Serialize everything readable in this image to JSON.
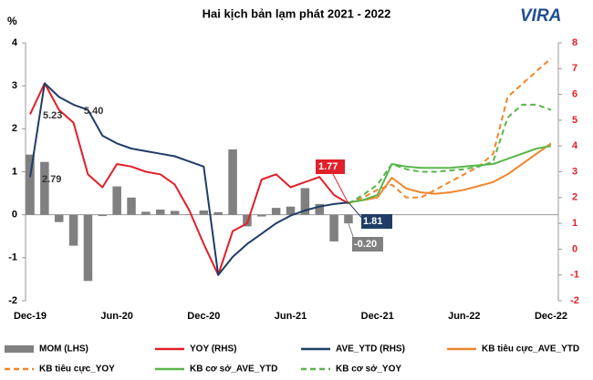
{
  "chart_data": {
    "type": "combo",
    "title": "Hai kịch bản lạm phát 2021 - 2022",
    "logo": "VIRA",
    "ylabel": "%",
    "categories": [
      "Dec-19",
      null,
      null,
      null,
      null,
      null,
      "Jun-20",
      null,
      null,
      null,
      null,
      null,
      "Dec-20",
      null,
      null,
      null,
      null,
      null,
      "Jun-21",
      null,
      null,
      null,
      null,
      null,
      "Dec-21",
      null,
      null,
      null,
      null,
      null,
      "Jun-22",
      null,
      null,
      null,
      null,
      null,
      "Dec-22"
    ],
    "ylim": [
      -2,
      4
    ],
    "yticks": [
      -2,
      -1,
      0,
      1,
      2,
      3,
      4
    ],
    "y2lim": [
      -2,
      8
    ],
    "y2ticks": [
      -2,
      -1,
      0,
      1,
      2,
      3,
      4,
      5,
      6,
      7,
      8
    ],
    "y2color": "#e0202a",
    "series": [
      {
        "name": "MOM (LHS)",
        "type": "bar",
        "color": "#808080",
        "values": [
          1.4,
          1.23,
          -0.17,
          -0.72,
          -1.54,
          -0.03,
          0.66,
          0.4,
          0.07,
          0.12,
          0.09,
          0.01,
          0.1,
          0.06,
          1.52,
          -0.27,
          -0.04,
          0.16,
          0.19,
          0.62,
          0.25,
          -0.62,
          -0.2,
          null,
          null,
          null,
          null,
          null,
          null,
          null,
          null,
          null,
          null,
          null,
          null,
          null,
          null
        ],
        "value_labels": [
          null,
          null,
          null,
          null,
          null,
          null,
          null,
          null,
          null,
          null,
          null,
          null,
          null,
          null,
          null,
          null,
          null,
          null,
          null,
          null,
          null,
          null,
          "-0.20",
          null,
          null,
          null,
          null,
          null,
          null,
          null,
          null,
          null,
          null,
          null,
          null,
          null,
          null
        ]
      },
      {
        "name": "YOY (RHS)",
        "type": "line",
        "axis": "y2",
        "color": "#e0202a",
        "style": "solid",
        "values": [
          5.23,
          6.43,
          5.4,
          4.9,
          2.9,
          2.4,
          3.3,
          3.2,
          3.0,
          2.9,
          2.5,
          1.5,
          0.2,
          -1.0,
          0.7,
          1.0,
          2.7,
          2.9,
          2.4,
          2.6,
          2.8,
          2.1,
          1.77,
          null,
          null,
          null,
          null,
          null,
          null,
          null,
          null,
          null,
          null,
          null,
          null,
          null,
          null
        ]
      },
      {
        "name": "AVE_YTD (RHS)",
        "type": "line",
        "axis": "y2",
        "color": "#1f3d66",
        "style": "solid",
        "values": [
          2.79,
          6.43,
          5.9,
          5.6,
          5.4,
          4.4,
          4.1,
          3.9,
          3.8,
          3.7,
          3.6,
          3.4,
          3.2,
          -1.0,
          -0.3,
          0.2,
          0.6,
          1.0,
          1.3,
          1.5,
          1.65,
          1.75,
          1.81,
          null,
          null,
          null,
          null,
          null,
          null,
          null,
          null,
          null,
          null,
          null,
          null,
          null,
          null
        ],
        "value_labels": [
          "2.79",
          null,
          null,
          null,
          "5.40",
          null,
          null,
          null,
          null,
          null,
          null,
          null,
          null,
          null,
          null,
          null,
          null,
          null,
          null,
          null,
          null,
          null,
          "1.81",
          null,
          null,
          null,
          null,
          null,
          null,
          null,
          null,
          null,
          null,
          null,
          null,
          null,
          null
        ]
      },
      {
        "name": "KB tiêu cực_AVE_YTD",
        "type": "line",
        "axis": "y2",
        "color": "#f0862a",
        "style": "solid",
        "values": [
          null,
          null,
          null,
          null,
          null,
          null,
          null,
          null,
          null,
          null,
          null,
          null,
          null,
          null,
          null,
          null,
          null,
          null,
          null,
          null,
          null,
          null,
          1.81,
          1.9,
          2.0,
          2.77,
          2.35,
          2.2,
          2.15,
          2.2,
          2.3,
          2.45,
          2.6,
          2.9,
          3.3,
          3.7,
          4.1
        ]
      },
      {
        "name": "KB tiêu cực_YOY",
        "type": "line",
        "axis": "y2",
        "color": "#f0862a",
        "style": "dashed",
        "values": [
          null,
          null,
          null,
          null,
          null,
          null,
          null,
          null,
          null,
          null,
          null,
          null,
          null,
          null,
          null,
          null,
          null,
          null,
          null,
          null,
          null,
          null,
          1.77,
          2.0,
          2.3,
          2.5,
          2.0,
          2.0,
          2.3,
          2.6,
          2.9,
          3.2,
          3.7,
          5.9,
          6.4,
          6.9,
          7.4
        ]
      },
      {
        "name": "KB cơ sở_AVE_YTD",
        "type": "line",
        "axis": "y2",
        "color": "#5ab54a",
        "style": "solid",
        "values": [
          null,
          null,
          null,
          null,
          null,
          null,
          null,
          null,
          null,
          null,
          null,
          null,
          null,
          null,
          null,
          null,
          null,
          null,
          null,
          null,
          null,
          null,
          1.81,
          1.9,
          2.1,
          3.3,
          3.2,
          3.15,
          3.15,
          3.15,
          3.2,
          3.25,
          3.3,
          3.5,
          3.7,
          3.9,
          4.0
        ]
      },
      {
        "name": "KB cơ sở_YOY",
        "type": "line",
        "axis": "y2",
        "color": "#5ab54a",
        "style": "dashed",
        "values": [
          null,
          null,
          null,
          null,
          null,
          null,
          null,
          null,
          null,
          null,
          null,
          null,
          null,
          null,
          null,
          null,
          null,
          null,
          null,
          null,
          null,
          null,
          1.77,
          2.1,
          2.5,
          3.3,
          3.1,
          3.0,
          3.0,
          3.05,
          3.1,
          3.2,
          3.4,
          5.1,
          5.6,
          5.6,
          5.4
        ]
      }
    ]
  }
}
